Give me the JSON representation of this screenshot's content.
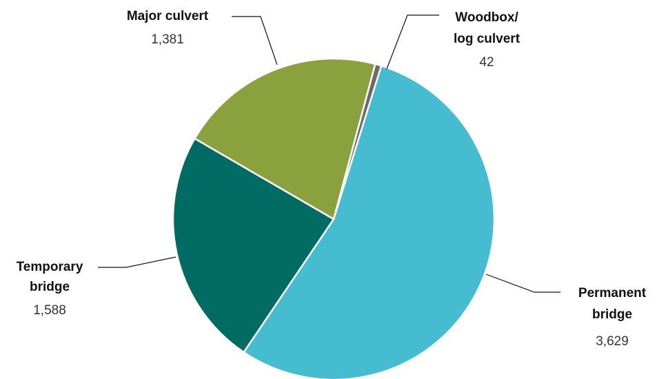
{
  "chart_data": {
    "type": "pie",
    "slices": [
      {
        "name": "Woodbox/",
        "name2": "log culvert",
        "value": 42,
        "value_label": "42",
        "color": "#6b6b6b"
      },
      {
        "name": "Permanent",
        "name2": "bridge",
        "value": 3629,
        "value_label": "3,629",
        "color": "#45bccf"
      },
      {
        "name": "Temporary",
        "name2": "bridge",
        "value": 1588,
        "value_label": "1,588",
        "color": "#006b63"
      },
      {
        "name": "Major culvert",
        "name2": "",
        "value": 1381,
        "value_label": "1,381",
        "color": "#8aa13e"
      }
    ]
  }
}
